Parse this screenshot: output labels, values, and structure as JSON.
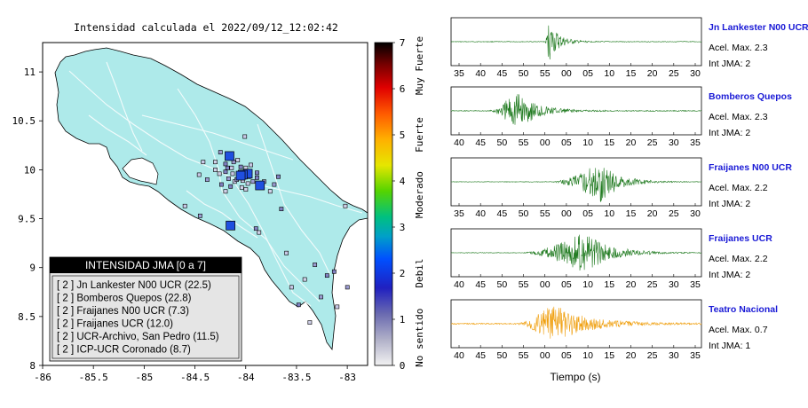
{
  "map": {
    "title": "Intensidad calculada el 2022/09/12_12:02:42",
    "x_ticks": [
      "-86",
      "-85.5",
      "-85",
      "-84.5",
      "-84",
      "-83.5",
      "-83"
    ],
    "y_ticks": [
      "11",
      "10.5",
      "10",
      "9.5",
      "9",
      "8.5",
      "8"
    ],
    "colorbar": {
      "ticks": [
        "7",
        "6",
        "5",
        "4",
        "3",
        "2",
        "1",
        "0"
      ],
      "bands": [
        "Muy Fuerte",
        "Fuerte",
        "Moderado",
        "Debil",
        "No sentido"
      ]
    },
    "legend": {
      "title": "INTENSIDAD JMA [0 a 7]",
      "items": [
        "[ 2 ]  Jn Lankester N00 UCR (22.5)",
        "[ 2 ]  Bomberos Quepos (22.8)",
        "[ 2 ]  Fraijanes N00 UCR (7.3)",
        "[ 2 ]  Fraijanes UCR (12.0)",
        "[ 2 ]  UCR-Archivo, San Pedro (11.5)",
        "[ 2 ]  ICP-UCR Coronado (8.7)"
      ]
    }
  },
  "chart_data": [
    {
      "type": "scatter",
      "title": "Intensidad calculada el 2022/09/12_12:02:42",
      "xlim": [
        -86,
        -82.8
      ],
      "ylim": [
        8,
        11.3
      ],
      "large_stations": [
        {
          "name": "Jn Lankester N00 UCR",
          "lon": -83.98,
          "lat": 9.96,
          "intensity": 2
        },
        {
          "name": "Bomberos Quepos",
          "lon": -84.15,
          "lat": 9.43,
          "intensity": 2
        },
        {
          "name": "Fraijanes N00 UCR",
          "lon": -84.16,
          "lat": 10.14,
          "intensity": 2
        },
        {
          "name": "Fraijanes UCR",
          "lon": -84.03,
          "lat": 9.95,
          "intensity": 2
        },
        {
          "name": "UCR-Archivo, San Pedro",
          "lon": -84.05,
          "lat": 9.94,
          "intensity": 2
        },
        {
          "name": "ICP-UCR Coronado",
          "lon": -83.86,
          "lat": 9.84,
          "intensity": 2
        }
      ],
      "other_stations": [
        [
          -84.01,
          10.34
        ],
        [
          -84.25,
          10.18
        ],
        [
          -84.2,
          10.06
        ],
        [
          -84.3,
          10.0
        ],
        [
          -84.46,
          9.95
        ],
        [
          -84.38,
          9.9
        ],
        [
          -84.2,
          9.98
        ],
        [
          -84.08,
          10.1
        ],
        [
          -84.11,
          9.88
        ],
        [
          -84.17,
          9.91
        ],
        [
          -84.24,
          9.85
        ],
        [
          -84.2,
          9.78
        ],
        [
          -83.98,
          9.86
        ],
        [
          -83.93,
          9.88
        ],
        [
          -83.89,
          9.92
        ],
        [
          -84.0,
          9.8
        ],
        [
          -83.87,
          9.82
        ],
        [
          -83.72,
          9.85
        ],
        [
          -83.68,
          9.93
        ],
        [
          -83.76,
          9.78
        ],
        [
          -84.13,
          9.96
        ],
        [
          -84.12,
          10.08
        ],
        [
          -84.05,
          10.03
        ],
        [
          -84.0,
          10.02
        ],
        [
          -83.95,
          10.05
        ],
        [
          -84.09,
          9.9
        ],
        [
          -84.15,
          9.83
        ],
        [
          -84.3,
          10.08
        ],
        [
          -84.03,
          9.89
        ],
        [
          -83.97,
          9.93
        ],
        [
          -84.18,
          10.02
        ],
        [
          -84.26,
          9.96
        ],
        [
          -84.42,
          10.08
        ],
        [
          -84.06,
          9.96
        ],
        [
          -83.89,
          9.97
        ],
        [
          -84.04,
          9.82
        ],
        [
          -84.14,
          10.02
        ],
        [
          -83.82,
          9.88
        ],
        [
          -83.65,
          9.6
        ],
        [
          -83.02,
          9.63
        ],
        [
          -84.6,
          9.63
        ],
        [
          -84.45,
          9.53
        ],
        [
          -83.9,
          9.4
        ],
        [
          -83.87,
          9.36
        ],
        [
          -83.6,
          9.15
        ],
        [
          -83.32,
          9.03
        ],
        [
          -83.13,
          8.96
        ],
        [
          -83.42,
          8.88
        ],
        [
          -83.55,
          8.8
        ],
        [
          -83.26,
          8.7
        ],
        [
          -83.48,
          8.62
        ],
        [
          -83.37,
          8.44
        ],
        [
          -83.1,
          8.6
        ],
        [
          -83.0,
          8.8
        ],
        [
          -83.2,
          8.92
        ]
      ]
    },
    {
      "type": "line",
      "xlabel": "Tiempo (s)",
      "series": [
        {
          "name": "Jn Lankester N00 UCR",
          "amp_label": "Acel. Max. 2.3",
          "jma_label": "Int JMA: 2",
          "color": "#1f7a1f",
          "x_ticks": [
            "35",
            "40",
            "45",
            "50",
            "55",
            "00",
            "05",
            "10",
            "15",
            "20",
            "25",
            "30"
          ],
          "onset": 0.375,
          "peak": 1.0,
          "decay": 0.04,
          "peak_at": 0.39,
          "noise": 0.015
        },
        {
          "name": "Bomberos Quepos",
          "amp_label": "Acel. Max. 2.3",
          "jma_label": "Int JMA: 2",
          "color": "#1f7a1f",
          "x_ticks": [
            "40",
            "45",
            "50",
            "55",
            "00",
            "05",
            "10",
            "15",
            "20",
            "25",
            "30",
            "35"
          ],
          "onset": 0.15,
          "peak": 1.0,
          "decay": 0.08,
          "peak_at": 0.26,
          "noise": 0.02
        },
        {
          "name": "Fraijanes N00 UCR",
          "amp_label": "Acel. Max. 2.2",
          "jma_label": "Int JMA: 2",
          "color": "#1f7a1f",
          "x_ticks": [
            "35",
            "40",
            "45",
            "50",
            "55",
            "00",
            "05",
            "10",
            "15",
            "20",
            "25",
            "30"
          ],
          "onset": 0.4,
          "peak": 1.0,
          "decay": 0.07,
          "peak_at": 0.6,
          "noise": 0.012
        },
        {
          "name": "Fraijanes UCR",
          "amp_label": "Acel. Max. 2.2",
          "jma_label": "Int JMA: 2",
          "color": "#1f7a1f",
          "x_ticks": [
            "40",
            "45",
            "50",
            "55",
            "00",
            "05",
            "10",
            "15",
            "20",
            "25",
            "30",
            "35"
          ],
          "onset": 0.28,
          "peak": 1.0,
          "decay": 0.1,
          "peak_at": 0.53,
          "noise": 0.012
        },
        {
          "name": "Teatro Nacional",
          "amp_label": "Acel. Max. 0.7",
          "jma_label": "Int JMA: 1",
          "color": "#f0a010",
          "x_ticks": [
            "40",
            "45",
            "50",
            "55",
            "00",
            "05",
            "10",
            "15",
            "20",
            "25",
            "30",
            "35"
          ],
          "onset": 0.26,
          "peak": 1.0,
          "decay": 0.13,
          "peak_at": 0.4,
          "noise": 0.03
        }
      ]
    }
  ]
}
